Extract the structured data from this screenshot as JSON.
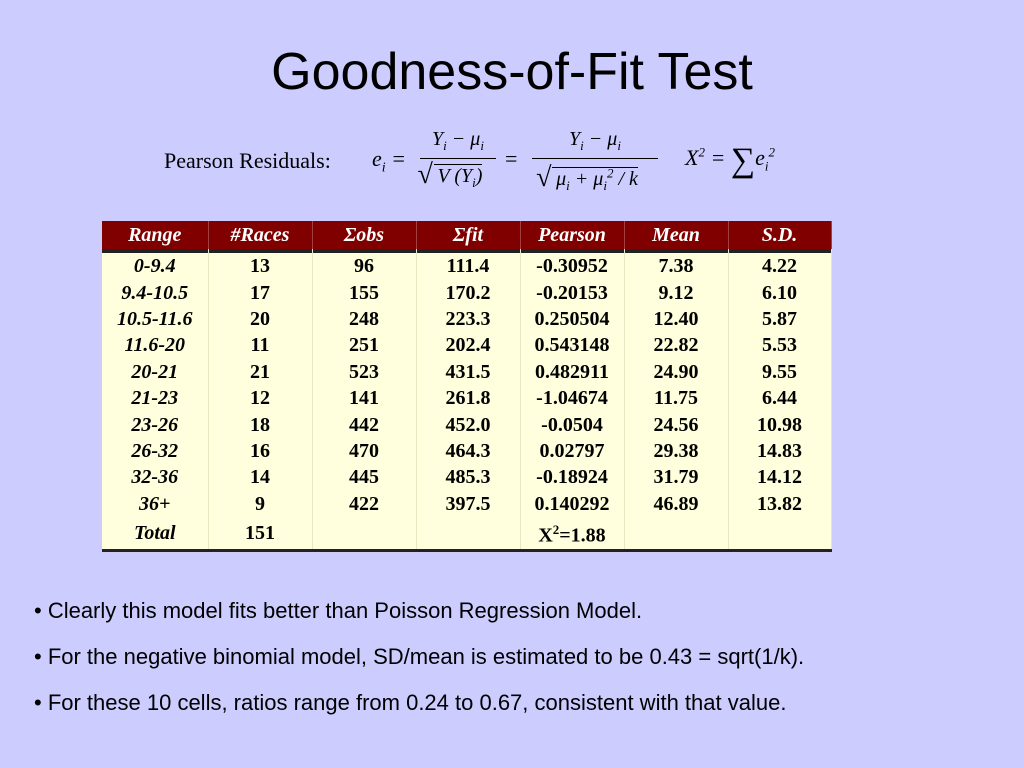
{
  "title": "Goodness-of-Fit Test",
  "formula": {
    "label": "Pearson Residuals:",
    "x2": "X",
    "x2_sup": "2",
    "e_sup": "2",
    "e_sub": "i"
  },
  "table": {
    "headers": [
      "Range",
      "#Races",
      "Σobs",
      "Σfit",
      "Pearson",
      "Mean",
      "S.D."
    ],
    "rows": [
      [
        "0-9.4",
        "13",
        "96",
        "111.4",
        "-0.30952",
        "7.38",
        "4.22"
      ],
      [
        "9.4-10.5",
        "17",
        "155",
        "170.2",
        "-0.20153",
        "9.12",
        "6.10"
      ],
      [
        "10.5-11.6",
        "20",
        "248",
        "223.3",
        "0.250504",
        "12.40",
        "5.87"
      ],
      [
        "11.6-20",
        "11",
        "251",
        "202.4",
        "0.543148",
        "22.82",
        "5.53"
      ],
      [
        "20-21",
        "21",
        "523",
        "431.5",
        "0.482911",
        "24.90",
        "9.55"
      ],
      [
        "21-23",
        "12",
        "141",
        "261.8",
        "-1.04674",
        "11.75",
        "6.44"
      ],
      [
        "23-26",
        "18",
        "442",
        "452.0",
        "-0.0504",
        "24.56",
        "10.98"
      ],
      [
        "26-32",
        "16",
        "470",
        "464.3",
        "0.02797",
        "29.38",
        "14.83"
      ],
      [
        "32-36",
        "14",
        "445",
        "485.3",
        "-0.18924",
        "31.79",
        "14.12"
      ],
      [
        "36+",
        "9",
        "422",
        "397.5",
        "0.140292",
        "46.89",
        "13.82"
      ],
      [
        "Total",
        "151",
        "",
        "",
        "X2=1.88",
        "",
        ""
      ]
    ]
  },
  "bullets": [
    "• Clearly this model fits better than Poisson Regression Model.",
    "• For the negative binomial model, SD/mean is estimated to be 0.43 = sqrt(1/k).",
    "• For these 10 cells, ratios range from 0.24 to 0.67, consistent with that value."
  ]
}
